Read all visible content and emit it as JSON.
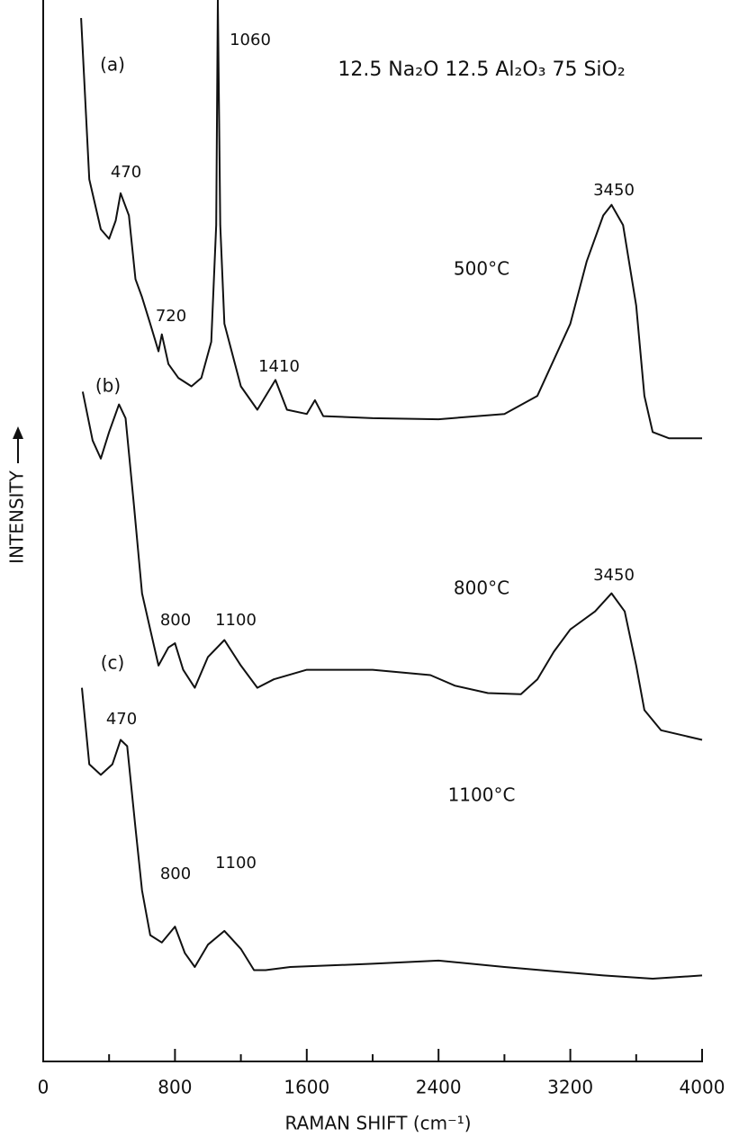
{
  "chart_data": {
    "type": "line",
    "title": "12.5 Na₂O 12.5 Al₂O₃ 75 SiO₂",
    "x_label": "RAMAN SHIFT (cm⁻¹)",
    "y_label": "INTENSITY",
    "xlim": [
      0,
      4000
    ],
    "xticks": [
      0,
      800,
      1600,
      2400,
      3200,
      4000
    ],
    "xminor": [
      400,
      1200,
      2000,
      2800,
      3600
    ],
    "ylim": [
      0,
      100
    ],
    "color": "#111111",
    "series": [
      {
        "label": "(a)",
        "temperature": "500°C",
        "x": [
          230,
          280,
          350,
          400,
          440,
          470,
          520,
          560,
          600,
          650,
          700,
          720,
          760,
          820,
          900,
          960,
          1020,
          1050,
          1060,
          1075,
          1100,
          1200,
          1300,
          1410,
          1480,
          1600,
          1650,
          1700,
          2000,
          2400,
          2800,
          3000,
          3200,
          3300,
          3400,
          3450,
          3520,
          3600,
          3650,
          3700,
          3800,
          4000
        ],
        "values": [
          98.3,
          83.1,
          78.4,
          77.5,
          79.2,
          81.8,
          79.7,
          73.7,
          72.0,
          69.5,
          66.9,
          68.5,
          65.7,
          64.4,
          63.6,
          64.4,
          67.8,
          78.8,
          100,
          78.8,
          69.5,
          63.6,
          61.4,
          64.2,
          61.4,
          61.0,
          62.3,
          60.8,
          60.6,
          60.5,
          61.0,
          62.7,
          69.5,
          75.4,
          79.7,
          80.7,
          78.8,
          71.2,
          62.7,
          59.3,
          58.7,
          58.7
        ],
        "peaks": [
          "1060",
          "470",
          "3450",
          "720",
          "1410"
        ]
      },
      {
        "label": "(b)",
        "temperature": "800°C",
        "x": [
          240,
          300,
          350,
          400,
          460,
          500,
          550,
          600,
          650,
          700,
          760,
          800,
          850,
          920,
          1000,
          1100,
          1200,
          1300,
          1400,
          1600,
          2000,
          2350,
          2500,
          2700,
          2900,
          3000,
          3100,
          3200,
          3350,
          3450,
          3530,
          3600,
          3650,
          3750,
          4000
        ],
        "values": [
          63.1,
          58.5,
          56.8,
          59.3,
          61.9,
          60.6,
          52.5,
          44.1,
          40.7,
          37.3,
          39.0,
          39.4,
          36.9,
          35.2,
          38.1,
          39.7,
          37.3,
          35.2,
          36.0,
          36.9,
          36.9,
          36.4,
          35.4,
          34.7,
          34.6,
          36.0,
          38.6,
          40.7,
          42.4,
          44.1,
          42.4,
          37.3,
          33.1,
          31.2,
          30.3
        ],
        "peaks": [
          "3450",
          "800",
          "1100"
        ]
      },
      {
        "label": "(c)",
        "temperature": "1100°C",
        "x": [
          235,
          280,
          350,
          420,
          470,
          510,
          560,
          600,
          650,
          720,
          800,
          860,
          920,
          1000,
          1100,
          1200,
          1280,
          1350,
          1500,
          2000,
          2400,
          2800,
          3100,
          3400,
          3700,
          4000
        ],
        "values": [
          35.2,
          28.0,
          27.0,
          28.0,
          30.3,
          29.7,
          22.0,
          16.1,
          11.9,
          11.2,
          12.7,
          10.2,
          8.9,
          11.0,
          12.3,
          10.6,
          8.6,
          8.6,
          8.9,
          9.2,
          9.5,
          8.9,
          8.5,
          8.1,
          7.8,
          8.1
        ],
        "peaks": [
          "470",
          "800",
          "1100"
        ]
      }
    ]
  }
}
